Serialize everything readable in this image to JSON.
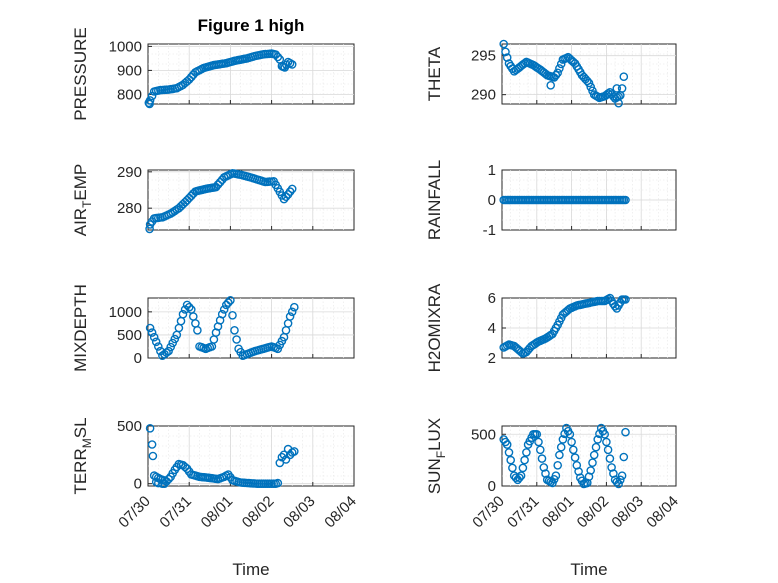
{
  "figure": {
    "title": "Figure 1 high"
  },
  "chart_data": [
    {
      "type": "scatter",
      "title": "Figure 1 high",
      "ylabel": "PRESSURE",
      "xlabel": "",
      "xlim": [
        0,
        5
      ],
      "ylim": [
        760,
        1010
      ],
      "yticks": [
        800,
        900,
        1000
      ],
      "xticks": [],
      "grid": "major+minor",
      "marker": "circle",
      "color": "#0072BD",
      "anchors": [
        [
          0.05,
          775
        ],
        [
          0.15,
          812
        ],
        [
          0.3,
          818
        ],
        [
          0.5,
          820
        ],
        [
          0.7,
          826
        ],
        [
          0.85,
          840
        ],
        [
          1.0,
          862
        ],
        [
          1.15,
          892
        ],
        [
          1.35,
          910
        ],
        [
          1.6,
          922
        ],
        [
          1.9,
          930
        ],
        [
          2.1,
          940
        ],
        [
          2.4,
          950
        ],
        [
          2.6,
          960
        ],
        [
          2.8,
          967
        ],
        [
          3.0,
          970
        ],
        [
          3.1,
          966
        ],
        [
          3.2,
          946
        ],
        [
          3.25,
          918
        ],
        [
          3.32,
          912
        ],
        [
          3.4,
          935
        ],
        [
          3.5,
          925
        ]
      ],
      "points": [
        [
          0.02,
          765
        ],
        [
          0.04,
          760
        ]
      ]
    },
    {
      "type": "scatter",
      "title": "",
      "ylabel": "THETA",
      "xlabel": "",
      "xlim": [
        0,
        5
      ],
      "ylim": [
        288.8,
        296.5
      ],
      "yticks": [
        290,
        295
      ],
      "xticks": [],
      "grid": "major+minor",
      "marker": "circle",
      "color": "#0072BD",
      "anchors": [
        [
          0.05,
          296.5
        ],
        [
          0.1,
          295.5
        ],
        [
          0.2,
          294.0
        ],
        [
          0.35,
          293.0
        ],
        [
          0.5,
          293.5
        ],
        [
          0.7,
          294.2
        ],
        [
          0.9,
          293.8
        ],
        [
          1.1,
          293.2
        ],
        [
          1.3,
          292.5
        ],
        [
          1.5,
          292.2
        ],
        [
          1.6,
          292.8
        ],
        [
          1.75,
          294.5
        ],
        [
          1.9,
          294.8
        ],
        [
          2.1,
          294.0
        ],
        [
          2.3,
          292.5
        ],
        [
          2.5,
          291.5
        ],
        [
          2.65,
          290.0
        ],
        [
          2.8,
          289.6
        ],
        [
          2.95,
          289.8
        ],
        [
          3.1,
          290.3
        ],
        [
          3.25,
          289.5
        ],
        [
          3.4,
          289.9
        ]
      ],
      "points": [
        [
          1.4,
          291.2
        ],
        [
          3.3,
          290.8
        ],
        [
          3.35,
          288.9
        ],
        [
          3.45,
          290.8
        ],
        [
          3.5,
          292.3
        ]
      ]
    },
    {
      "type": "scatter",
      "title": "",
      "ylabel": "AIR_TEMP",
      "xlabel": "",
      "xlim": [
        0,
        5
      ],
      "ylim": [
        274,
        290.5
      ],
      "yticks": [
        280,
        290
      ],
      "xticks": [],
      "grid": "major+minor",
      "marker": "circle",
      "color": "#0072BD",
      "anchors": [
        [
          0.05,
          275.5
        ],
        [
          0.15,
          277.2
        ],
        [
          0.35,
          277.5
        ],
        [
          0.55,
          278.5
        ],
        [
          0.75,
          280.0
        ],
        [
          0.95,
          282.2
        ],
        [
          1.15,
          284.6
        ],
        [
          1.4,
          285.3
        ],
        [
          1.65,
          285.8
        ],
        [
          1.85,
          288.5
        ],
        [
          2.05,
          289.6
        ],
        [
          2.25,
          289.2
        ],
        [
          2.45,
          288.6
        ],
        [
          2.65,
          287.9
        ],
        [
          2.85,
          287.2
        ],
        [
          3.05,
          287.4
        ],
        [
          3.2,
          284.5
        ],
        [
          3.3,
          282.5
        ],
        [
          3.4,
          283.8
        ],
        [
          3.5,
          285.3
        ]
      ],
      "points": [
        [
          0.04,
          274.3
        ]
      ]
    },
    {
      "type": "scatter",
      "title": "",
      "ylabel": "RAINFALL",
      "xlabel": "",
      "xlim": [
        0,
        5
      ],
      "ylim": [
        -1,
        1
      ],
      "yticks": [
        -1,
        0,
        1
      ],
      "xticks": [],
      "grid": "major+minor",
      "marker": "circle",
      "color": "#0072BD",
      "anchors": [
        [
          0.05,
          0
        ],
        [
          3.55,
          0
        ]
      ],
      "points": []
    },
    {
      "type": "scatter",
      "title": "",
      "ylabel": "MIXDEPTH",
      "xlabel": "",
      "xlim": [
        0,
        5
      ],
      "ylim": [
        0,
        1300
      ],
      "yticks": [
        0,
        500,
        1000
      ],
      "xticks": [],
      "grid": "major+minor",
      "marker": "circle",
      "color": "#0072BD",
      "anchors": [
        [
          0.05,
          650
        ],
        [
          0.2,
          350
        ],
        [
          0.35,
          50
        ],
        [
          0.5,
          150
        ],
        [
          0.7,
          500
        ],
        [
          0.85,
          950
        ],
        [
          0.95,
          1150
        ],
        [
          1.05,
          1050
        ],
        [
          1.2,
          600
        ],
        [
          1.25,
          250
        ],
        [
          1.4,
          200
        ],
        [
          1.55,
          250
        ],
        [
          1.65,
          550
        ],
        [
          1.8,
          950
        ],
        [
          1.9,
          1150
        ],
        [
          2.0,
          1250
        ],
        [
          2.1,
          600
        ],
        [
          2.2,
          200
        ],
        [
          2.3,
          50
        ],
        [
          2.45,
          100
        ],
        [
          2.6,
          150
        ],
        [
          2.8,
          200
        ],
        [
          3.0,
          250
        ],
        [
          3.15,
          200
        ],
        [
          3.3,
          450
        ],
        [
          3.45,
          900
        ],
        [
          3.55,
          1100
        ]
      ],
      "points": []
    },
    {
      "type": "scatter",
      "title": "",
      "ylabel": "H2OMIXRA",
      "xlabel": "",
      "xlim": [
        0,
        5
      ],
      "ylim": [
        2,
        6
      ],
      "yticks": [
        2,
        4,
        6
      ],
      "xticks": [],
      "grid": "major+minor",
      "marker": "circle",
      "color": "#0072BD",
      "anchors": [
        [
          0.05,
          2.7
        ],
        [
          0.2,
          2.9
        ],
        [
          0.35,
          2.8
        ],
        [
          0.5,
          2.5
        ],
        [
          0.6,
          2.3
        ],
        [
          0.7,
          2.4
        ],
        [
          0.85,
          2.8
        ],
        [
          1.05,
          3.1
        ],
        [
          1.25,
          3.3
        ],
        [
          1.45,
          3.6
        ],
        [
          1.6,
          4.2
        ],
        [
          1.75,
          4.9
        ],
        [
          1.95,
          5.3
        ],
        [
          2.15,
          5.5
        ],
        [
          2.35,
          5.6
        ],
        [
          2.55,
          5.7
        ],
        [
          2.75,
          5.8
        ],
        [
          2.95,
          5.8
        ],
        [
          3.1,
          6.0
        ],
        [
          3.2,
          5.6
        ],
        [
          3.3,
          5.3
        ],
        [
          3.45,
          5.9
        ],
        [
          3.55,
          5.9
        ]
      ],
      "points": []
    },
    {
      "type": "scatter",
      "title": "",
      "ylabel": "TERR_MSL",
      "xlabel": "Time",
      "xlim": [
        0,
        5
      ],
      "ylim": [
        -20,
        500
      ],
      "yticks": [
        0,
        500
      ],
      "grid": "major+minor",
      "xticks": [
        "07/30",
        "07/31",
        "08/01",
        "08/02",
        "08/03",
        "08/04"
      ],
      "marker": "circle",
      "color": "#0072BD",
      "anchors": [
        [
          0.15,
          70
        ],
        [
          0.3,
          40
        ],
        [
          0.45,
          20
        ],
        [
          0.55,
          60
        ],
        [
          0.65,
          120
        ],
        [
          0.75,
          170
        ],
        [
          0.85,
          160
        ],
        [
          0.95,
          130
        ],
        [
          1.05,
          80
        ],
        [
          1.25,
          60
        ],
        [
          1.5,
          50
        ],
        [
          1.7,
          40
        ],
        [
          1.85,
          60
        ],
        [
          1.95,
          80
        ],
        [
          2.05,
          30
        ],
        [
          2.25,
          10
        ],
        [
          2.45,
          5
        ],
        [
          2.65,
          0
        ],
        [
          2.85,
          0
        ],
        [
          3.0,
          0
        ],
        [
          3.1,
          0
        ]
      ],
      "points": [
        [
          0.05,
          480
        ],
        [
          0.1,
          340
        ],
        [
          0.12,
          240
        ],
        [
          0.2,
          15
        ],
        [
          0.25,
          5
        ],
        [
          0.35,
          0
        ],
        [
          0.4,
          0
        ],
        [
          3.15,
          5
        ],
        [
          3.2,
          180
        ],
        [
          3.25,
          230
        ],
        [
          3.3,
          250
        ],
        [
          3.35,
          210
        ],
        [
          3.4,
          300
        ],
        [
          3.45,
          250
        ],
        [
          3.5,
          270
        ],
        [
          3.55,
          280
        ]
      ]
    },
    {
      "type": "scatter",
      "title": "",
      "ylabel": "SUN_FLUX",
      "xlabel": "Time",
      "xlim": [
        0,
        5
      ],
      "ylim": [
        0,
        580
      ],
      "yticks": [
        0,
        500
      ],
      "grid": "major+minor",
      "xticks": [
        "07/30",
        "07/31",
        "08/01",
        "08/02",
        "08/03",
        "08/04"
      ],
      "marker": "circle",
      "color": "#0072BD",
      "anchors": [
        [
          0.05,
          450
        ],
        [
          0.15,
          400
        ],
        [
          0.25,
          250
        ],
        [
          0.35,
          100
        ],
        [
          0.45,
          60
        ],
        [
          0.55,
          100
        ],
        [
          0.65,
          250
        ],
        [
          0.75,
          400
        ],
        [
          0.9,
          500
        ],
        [
          1.0,
          500
        ],
        [
          1.1,
          350
        ],
        [
          1.2,
          180
        ],
        [
          1.3,
          60
        ],
        [
          1.45,
          30
        ],
        [
          1.55,
          100
        ],
        [
          1.65,
          300
        ],
        [
          1.75,
          450
        ],
        [
          1.85,
          560
        ],
        [
          1.95,
          500
        ],
        [
          2.05,
          350
        ],
        [
          2.15,
          200
        ],
        [
          2.25,
          80
        ],
        [
          2.35,
          20
        ],
        [
          2.45,
          30
        ],
        [
          2.55,
          150
        ],
        [
          2.65,
          300
        ],
        [
          2.75,
          450
        ],
        [
          2.85,
          560
        ],
        [
          2.95,
          500
        ],
        [
          3.05,
          350
        ],
        [
          3.15,
          180
        ],
        [
          3.25,
          60
        ],
        [
          3.35,
          20
        ],
        [
          3.45,
          100
        ],
        [
          3.5,
          280
        ],
        [
          3.55,
          520
        ]
      ],
      "points": []
    }
  ]
}
